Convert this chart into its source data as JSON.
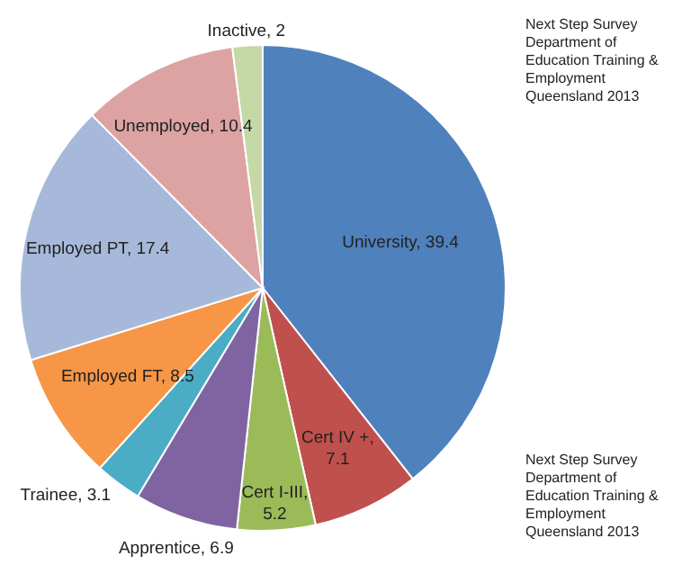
{
  "chart_data": {
    "type": "pie",
    "categories": [
      "University",
      "Cert IV +",
      "Cert I-III",
      "Apprentice",
      "Trainee",
      "Employed FT",
      "Employed PT",
      "Unemployed",
      "Inactive"
    ],
    "values": [
      39.4,
      7.1,
      5.2,
      6.9,
      3.1,
      8.5,
      17.4,
      10.4,
      2
    ],
    "colors": [
      "#4f81bd",
      "#c0504d",
      "#9bbb59",
      "#8064a2",
      "#4bacc6",
      "#f79646",
      "#a7b9da",
      "#dca3a2",
      "#c4d9a6"
    ],
    "value_labels": [
      ", 39.4",
      ", 7.1",
      ", 5.2",
      ", 6.9",
      ", 3.1",
      ", 8.5",
      ", 17.4",
      ", 10.4",
      ", 2"
    ],
    "annotations": [
      "Next Step Survey\nDepartment of Education Training & Employment\nQueensland 2013",
      "Next Step Survey\nDepartment of Education Training & Employment\nQueensland 2013"
    ]
  }
}
